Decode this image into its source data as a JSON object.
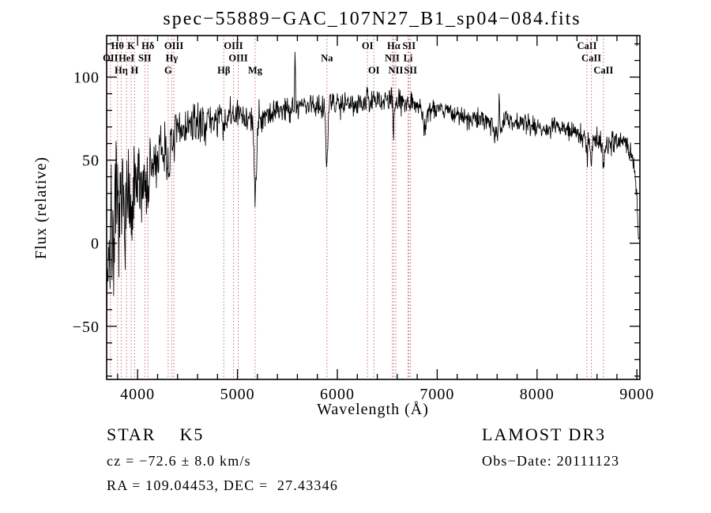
{
  "footer": {
    "classification": "STAR    K5",
    "survey": "LAMOST DR3",
    "cz": "cz = −72.6 ± 8.0 km/s",
    "obs_date": "Obs−Date: 20111123",
    "ra_dec": "RA = 109.04453, DEC =  27.43346"
  },
  "chart_data": {
    "type": "line",
    "title": "spec−55889−GAC_107N27_B1_sp04−084.fits",
    "xlabel": "Wavelength (Å)",
    "ylabel": "Flux (relative)",
    "x_range": [
      3690,
      9030
    ],
    "y_range": [
      -82,
      125
    ],
    "x_ticks": [
      4000,
      5000,
      6000,
      7000,
      8000,
      9000
    ],
    "x_minor_step": 200,
    "y_ticks": [
      -50,
      0,
      50,
      100
    ],
    "y_minor_step": 10,
    "grid": false,
    "series": [
      {
        "name": "spectrum",
        "color": "#000000",
        "sample_step": 4,
        "noise_seed": 7,
        "x_start": 3692,
        "x_end": 9020,
        "envelope": [
          [
            3692,
            -30
          ],
          [
            3700,
            -12
          ],
          [
            3712,
            4
          ],
          [
            3725,
            -6
          ],
          [
            3740,
            8
          ],
          [
            3760,
            4
          ],
          [
            3780,
            14
          ],
          [
            3800,
            18
          ],
          [
            3820,
            12
          ],
          [
            3845,
            20
          ],
          [
            3865,
            25
          ],
          [
            3885,
            22
          ],
          [
            3905,
            28
          ],
          [
            3925,
            30
          ],
          [
            3950,
            27
          ],
          [
            3980,
            32
          ],
          [
            4005,
            33
          ],
          [
            4035,
            36
          ],
          [
            4065,
            38
          ],
          [
            4100,
            40
          ],
          [
            4150,
            45
          ],
          [
            4200,
            50
          ],
          [
            4255,
            56
          ],
          [
            4305,
            59
          ],
          [
            4355,
            63
          ],
          [
            4405,
            66
          ],
          [
            4455,
            69
          ],
          [
            4505,
            70
          ],
          [
            4555,
            71
          ],
          [
            4605,
            72
          ],
          [
            4705,
            73
          ],
          [
            4805,
            75
          ],
          [
            4905,
            76
          ],
          [
            5005,
            77
          ],
          [
            5085,
            76
          ],
          [
            5155,
            74
          ],
          [
            5255,
            77
          ],
          [
            5355,
            79
          ],
          [
            5455,
            81
          ],
          [
            5555,
            82
          ],
          [
            5655,
            83
          ],
          [
            5755,
            83
          ],
          [
            5855,
            83
          ],
          [
            5955,
            84
          ],
          [
            6055,
            85
          ],
          [
            6155,
            85
          ],
          [
            6255,
            84
          ],
          [
            6355,
            85
          ],
          [
            6455,
            86
          ],
          [
            6555,
            86
          ],
          [
            6655,
            86
          ],
          [
            6755,
            85
          ],
          [
            6825,
            83
          ],
          [
            6905,
            80
          ],
          [
            7005,
            82
          ],
          [
            7105,
            80
          ],
          [
            7205,
            77
          ],
          [
            7305,
            74
          ],
          [
            7405,
            75
          ],
          [
            7505,
            74
          ],
          [
            7605,
            72
          ],
          [
            7705,
            74
          ],
          [
            7805,
            73
          ],
          [
            7905,
            72
          ],
          [
            8005,
            70
          ],
          [
            8105,
            69
          ],
          [
            8205,
            70
          ],
          [
            8305,
            68
          ],
          [
            8405,
            66
          ],
          [
            8505,
            64
          ],
          [
            8605,
            62
          ],
          [
            8705,
            60
          ],
          [
            8805,
            62
          ],
          [
            8875,
            60
          ],
          [
            8935,
            56
          ],
          [
            8975,
            48
          ],
          [
            9000,
            30
          ],
          [
            9012,
            8
          ],
          [
            9020,
            2
          ]
        ],
        "noise_amp": [
          [
            3692,
            36
          ],
          [
            3750,
            33
          ],
          [
            3800,
            30
          ],
          [
            3850,
            27
          ],
          [
            3900,
            25
          ],
          [
            3950,
            23
          ],
          [
            4000,
            21
          ],
          [
            4100,
            18
          ],
          [
            4200,
            15
          ],
          [
            4300,
            13
          ],
          [
            4400,
            11
          ],
          [
            4500,
            10
          ],
          [
            4600,
            9
          ],
          [
            4800,
            8.5
          ],
          [
            5000,
            8
          ],
          [
            5200,
            7.5
          ],
          [
            5400,
            7
          ],
          [
            5600,
            6.5
          ],
          [
            5900,
            6.2
          ],
          [
            6200,
            6
          ],
          [
            6600,
            5.5
          ],
          [
            7000,
            5
          ],
          [
            7500,
            4.8
          ],
          [
            8000,
            4.8
          ],
          [
            8500,
            5
          ],
          [
            8900,
            5.5
          ],
          [
            9020,
            4
          ]
        ],
        "features": [
          {
            "center": 3935,
            "amp": -28,
            "sigma": 10
          },
          {
            "center": 4103,
            "amp": -12,
            "sigma": 7
          },
          {
            "center": 4306,
            "amp": -13,
            "sigma": 12
          },
          {
            "center": 4342,
            "amp": -9,
            "sigma": 7
          },
          {
            "center": 4863,
            "amp": -12,
            "sigma": 8
          },
          {
            "center": 5177,
            "amp": -45,
            "sigma": 12
          },
          {
            "center": 5577,
            "amp": 30,
            "sigma": 4
          },
          {
            "center": 5896,
            "amp": -36,
            "sigma": 9
          },
          {
            "center": 6302,
            "amp": 9,
            "sigma": 3
          },
          {
            "center": 6565,
            "amp": -20,
            "sigma": 7
          },
          {
            "center": 6872,
            "amp": -12,
            "sigma": 16
          },
          {
            "center": 7605,
            "amp": -8,
            "sigma": 25
          },
          {
            "center": 7621,
            "amp": 24,
            "sigma": 4
          },
          {
            "center": 8500,
            "amp": -13,
            "sigma": 7
          },
          {
            "center": 8544,
            "amp": -17,
            "sigma": 7
          },
          {
            "center": 8665,
            "amp": -15,
            "sigma": 7
          }
        ]
      }
    ],
    "spectral_lines": {
      "color": "#c76b6b",
      "label_color": "#8b1a1a",
      "rows": 3,
      "lines": [
        {
          "label": "OII",
          "wavelength": 3728,
          "row": 2
        },
        {
          "label": "Hθ",
          "wavelength": 3799,
          "row": 1
        },
        {
          "label": "Hη",
          "wavelength": 3836,
          "row": 3
        },
        {
          "label": "HeI",
          "wavelength": 3889,
          "row": 2
        },
        {
          "label": "K",
          "wavelength": 3935,
          "row": 1
        },
        {
          "label": "H",
          "wavelength": 3970,
          "row": 3
        },
        {
          "label": "SII",
          "wavelength": 4072,
          "row": 2
        },
        {
          "label": "Hδ",
          "wavelength": 4103,
          "row": 1
        },
        {
          "label": "G",
          "wavelength": 4306,
          "row": 3
        },
        {
          "label": "Hγ",
          "wavelength": 4342,
          "row": 2
        },
        {
          "label": "OIII",
          "wavelength": 4363,
          "row": 1
        },
        {
          "label": "Hβ",
          "wavelength": 4863,
          "row": 3
        },
        {
          "label": "OIII",
          "wavelength": 4960,
          "row": 1
        },
        {
          "label": "OIII",
          "wavelength": 5008,
          "row": 2
        },
        {
          "label": "Mg",
          "wavelength": 5177,
          "row": 3
        },
        {
          "label": "Na",
          "wavelength": 5896,
          "row": 2
        },
        {
          "label": "OI",
          "wavelength": 6302,
          "row": 1
        },
        {
          "label": "OI",
          "wavelength": 6366,
          "row": 3
        },
        {
          "label": "NII",
          "wavelength": 6550,
          "row": 2
        },
        {
          "label": "Hα",
          "wavelength": 6565,
          "row": 1
        },
        {
          "label": "NII",
          "wavelength": 6585,
          "row": 3
        },
        {
          "label": "Li",
          "wavelength": 6708,
          "row": 2
        },
        {
          "label": "SII",
          "wavelength": 6718,
          "row": 1
        },
        {
          "label": "SII",
          "wavelength": 6733,
          "row": 3
        },
        {
          "label": "CaII",
          "wavelength": 8500,
          "row": 1
        },
        {
          "label": "CaII",
          "wavelength": 8544,
          "row": 2
        },
        {
          "label": "CaII",
          "wavelength": 8665,
          "row": 3
        }
      ]
    }
  }
}
